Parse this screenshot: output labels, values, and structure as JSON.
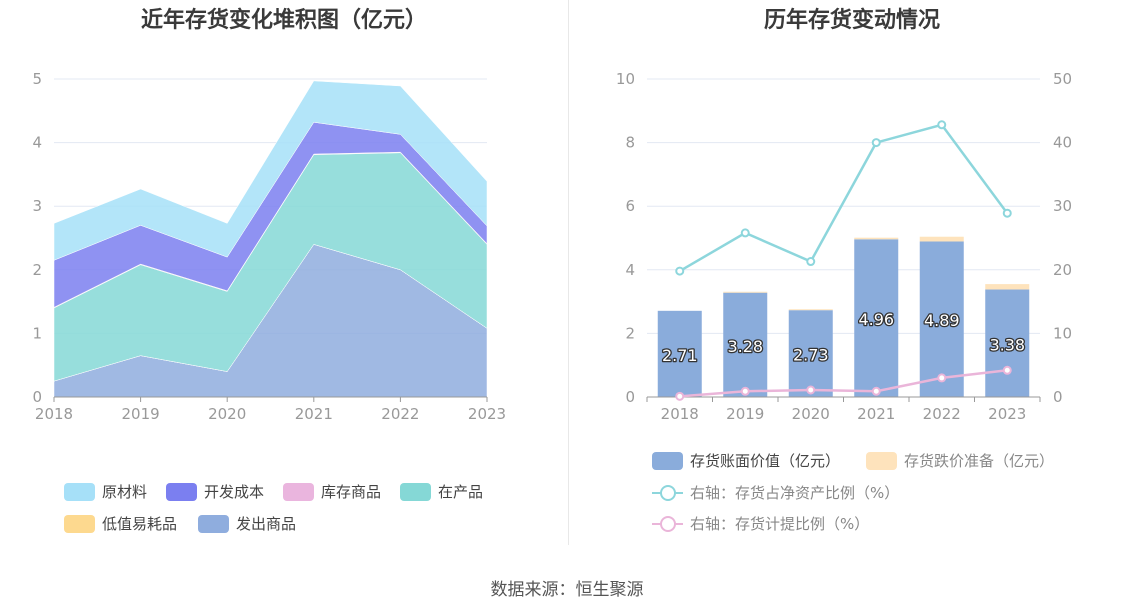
{
  "source": "数据来源：恒生聚源",
  "colors": {
    "raw": "#a6e0f8",
    "dev": "#7b7ff0",
    "stock": "#eab5de",
    "wip": "#85d8d6",
    "lowvalue": "#fdd98f",
    "shipped": "#8fadde",
    "bar_book": "#8aacdb",
    "bar_reserve": "#fee3bc",
    "line_ratio": "#8dd6dc",
    "line_provision": "#eab5d9",
    "axis": "#999999",
    "grid": "#e3e8f3"
  },
  "chart_data": [
    {
      "type": "area",
      "title": "近年存货变化堆积图（亿元）",
      "categories": [
        "2018",
        "2019",
        "2020",
        "2021",
        "2022",
        "2023"
      ],
      "ylim": [
        0,
        5
      ],
      "yticks": [
        0,
        1,
        2,
        3,
        4,
        5
      ],
      "grid": true,
      "legend_position": "bottom",
      "series": [
        {
          "name": "发出商品",
          "key": "shipped",
          "values": [
            0.25,
            0.65,
            0.4,
            2.4,
            2.0,
            1.08
          ]
        },
        {
          "name": "低值易耗品",
          "key": "lowvalue",
          "values": [
            0.0,
            0.0,
            0.0,
            0.0,
            0.0,
            0.0
          ]
        },
        {
          "name": "在产品",
          "key": "wip",
          "values": [
            1.15,
            1.43,
            1.26,
            1.41,
            1.84,
            1.32
          ]
        },
        {
          "name": "库存商品",
          "key": "stock",
          "values": [
            0.01,
            0.01,
            0.01,
            0.01,
            0.01,
            0.01
          ]
        },
        {
          "name": "开发成本",
          "key": "dev",
          "values": [
            0.74,
            0.61,
            0.53,
            0.5,
            0.28,
            0.28
          ]
        },
        {
          "name": "原材料",
          "key": "raw",
          "values": [
            0.58,
            0.57,
            0.53,
            0.65,
            0.76,
            0.7
          ]
        }
      ],
      "legend": [
        {
          "name": "原材料",
          "key": "raw"
        },
        {
          "name": "开发成本",
          "key": "dev"
        },
        {
          "name": "库存商品",
          "key": "stock"
        },
        {
          "name": "在产品",
          "key": "wip"
        },
        {
          "name": "低值易耗品",
          "key": "lowvalue"
        },
        {
          "name": "发出商品",
          "key": "shipped"
        }
      ]
    },
    {
      "type": "bar",
      "title": "历年存货变动情况",
      "categories": [
        "2018",
        "2019",
        "2020",
        "2021",
        "2022",
        "2023"
      ],
      "ylim": [
        0,
        10
      ],
      "yticks": [
        0,
        2,
        4,
        6,
        8,
        10
      ],
      "y2lim": [
        0,
        50
      ],
      "y2ticks": [
        0,
        10,
        20,
        30,
        40,
        50
      ],
      "grid": true,
      "legend_position": "bottom",
      "series": [
        {
          "name": "存货账面价值（亿元）",
          "key": "bar_book",
          "kind": "bar",
          "values": [
            2.71,
            3.28,
            2.73,
            4.96,
            4.89,
            3.38
          ],
          "labels": [
            "2.71",
            "3.28",
            "2.73",
            "4.96",
            "4.89",
            "3.38"
          ]
        },
        {
          "name": "存货跌价准备（亿元）",
          "key": "bar_reserve",
          "kind": "bar",
          "values": [
            0.0,
            0.03,
            0.03,
            0.05,
            0.15,
            0.17
          ]
        },
        {
          "name": "右轴：存货占净资产比例（%）",
          "key": "line_ratio",
          "kind": "line",
          "axis": "right",
          "values": [
            19.8,
            25.8,
            21.3,
            40.0,
            42.8,
            28.9
          ]
        },
        {
          "name": "右轴：存货计提比例（%）",
          "key": "line_provision",
          "kind": "line",
          "axis": "right",
          "values": [
            0.1,
            0.9,
            1.1,
            0.9,
            3.0,
            4.2
          ]
        }
      ]
    }
  ]
}
